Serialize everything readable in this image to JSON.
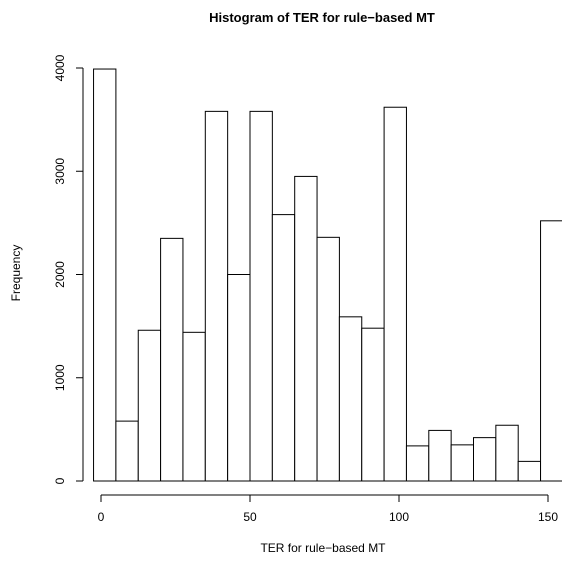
{
  "chart_data": {
    "type": "bar",
    "title": "Histogram of TER for rule−based MT",
    "xlabel": "TER for rule−based MT",
    "ylabel": "Frequency",
    "bin_width": 7.5,
    "xlim": [
      0,
      150
    ],
    "ylim": [
      0,
      4000
    ],
    "x_ticks": [
      0,
      50,
      100,
      150
    ],
    "y_ticks": [
      0,
      1000,
      2000,
      3000,
      4000
    ],
    "grid": false,
    "bins": [
      {
        "x0": -2.5,
        "x1": 5,
        "value": 3990
      },
      {
        "x0": 5,
        "x1": 12.5,
        "value": 580
      },
      {
        "x0": 12.5,
        "x1": 20,
        "value": 1460
      },
      {
        "x0": 20,
        "x1": 27.5,
        "value": 2350
      },
      {
        "x0": 27.5,
        "x1": 35,
        "value": 1440
      },
      {
        "x0": 35,
        "x1": 42.5,
        "value": 3580
      },
      {
        "x0": 42.5,
        "x1": 50,
        "value": 2000
      },
      {
        "x0": 50,
        "x1": 57.5,
        "value": 3580
      },
      {
        "x0": 57.5,
        "x1": 65,
        "value": 2580
      },
      {
        "x0": 65,
        "x1": 72.5,
        "value": 2950
      },
      {
        "x0": 72.5,
        "x1": 80,
        "value": 2360
      },
      {
        "x0": 80,
        "x1": 87.5,
        "value": 1590
      },
      {
        "x0": 87.5,
        "x1": 95,
        "value": 1480
      },
      {
        "x0": 95,
        "x1": 102.5,
        "value": 3620
      },
      {
        "x0": 102.5,
        "x1": 110,
        "value": 340
      },
      {
        "x0": 110,
        "x1": 117.5,
        "value": 490
      },
      {
        "x0": 117.5,
        "x1": 125,
        "value": 350
      },
      {
        "x0": 125,
        "x1": 132.5,
        "value": 420
      },
      {
        "x0": 132.5,
        "x1": 140,
        "value": 540
      },
      {
        "x0": 140,
        "x1": 147.5,
        "value": 190
      },
      {
        "x0": 147.5,
        "x1": 155,
        "value": 2520
      }
    ]
  }
}
